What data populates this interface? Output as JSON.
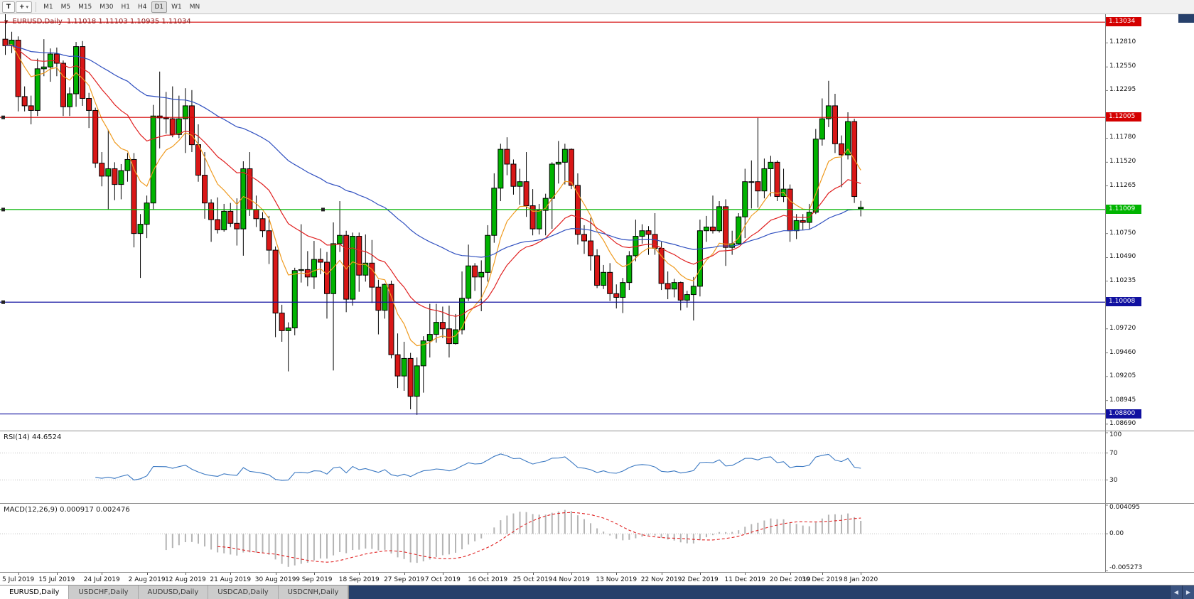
{
  "toolbar": {
    "tool_icons": [
      {
        "name": "text-tool",
        "glyph": "T"
      },
      {
        "name": "cursor-tool",
        "glyph": "+",
        "dropdown": "▾"
      }
    ],
    "timeframes": [
      "M1",
      "M5",
      "M15",
      "M30",
      "H1",
      "H4",
      "D1",
      "W1",
      "MN"
    ],
    "active": "D1"
  },
  "main_chart": {
    "marker": "▼",
    "symbol": "EURUSD,Daily",
    "ohlc": "1.11018 1.11103 1.10935 1.11034",
    "y_axis": {
      "max": 1.1312,
      "min": 1.0862
    },
    "scale_labels": [
      {
        "p": 1.1281,
        "t": "1.12810"
      },
      {
        "p": 1.1255,
        "t": "1.12550"
      },
      {
        "p": 1.12295,
        "t": "1.12295"
      },
      {
        "p": 1.1178,
        "t": "1.11780"
      },
      {
        "p": 1.1152,
        "t": "1.11520"
      },
      {
        "p": 1.11265,
        "t": "1.11265"
      },
      {
        "p": 1.1075,
        "t": "1.10750"
      },
      {
        "p": 1.1049,
        "t": "1.10490"
      },
      {
        "p": 1.10235,
        "t": "1.10235"
      },
      {
        "p": 1.0972,
        "t": "1.09720"
      },
      {
        "p": 1.0946,
        "t": "1.09460"
      },
      {
        "p": 1.09205,
        "t": "1.09205"
      },
      {
        "p": 1.08945,
        "t": "1.08945"
      },
      {
        "p": 1.0869,
        "t": "1.08690"
      }
    ],
    "hlines": [
      {
        "price": 1.13034,
        "label": "1.13034",
        "color": "#d40000",
        "handles": []
      },
      {
        "price": 1.12005,
        "label": "1.12005",
        "color": "#d40000",
        "handles": [
          2
        ]
      },
      {
        "price": 1.11009,
        "label": "1.11009",
        "color": "#00b400",
        "handles": [
          2,
          452
        ]
      },
      {
        "price": 1.10008,
        "label": "1.10008",
        "color": "#1010a0",
        "handles": [
          2
        ]
      },
      {
        "price": 1.088,
        "label": "1.08800",
        "color": "#1010a0",
        "handles": []
      }
    ]
  },
  "chart_data": {
    "type": "candlestick",
    "symbol": "EURUSD",
    "timeframe": "Daily",
    "candles": [
      [
        1.1285,
        1.1312,
        1.1268,
        1.1278
      ],
      [
        1.1278,
        1.1293,
        1.127,
        1.1284
      ],
      [
        1.1284,
        1.1288,
        1.1207,
        1.1223
      ],
      [
        1.1223,
        1.1234,
        1.1207,
        1.1213
      ],
      [
        1.1213,
        1.1224,
        1.1193,
        1.1208
      ],
      [
        1.1208,
        1.1264,
        1.1202,
        1.1253
      ],
      [
        1.1253,
        1.1285,
        1.1245,
        1.1255
      ],
      [
        1.1255,
        1.1275,
        1.1239,
        1.1269
      ],
      [
        1.1269,
        1.1276,
        1.1245,
        1.1259
      ],
      [
        1.1259,
        1.1262,
        1.1202,
        1.1212
      ],
      [
        1.1212,
        1.1233,
        1.1202,
        1.1226
      ],
      [
        1.1226,
        1.1282,
        1.1212,
        1.1277
      ],
      [
        1.1277,
        1.1283,
        1.1213,
        1.1221
      ],
      [
        1.1221,
        1.1227,
        1.1189,
        1.1208
      ],
      [
        1.1208,
        1.1211,
        1.1146,
        1.1151
      ],
      [
        1.1151,
        1.1163,
        1.1126,
        1.1137
      ],
      [
        1.1137,
        1.1187,
        1.1101,
        1.1145
      ],
      [
        1.1145,
        1.1152,
        1.1111,
        1.1128
      ],
      [
        1.1128,
        1.115,
        1.1112,
        1.1143
      ],
      [
        1.1143,
        1.1162,
        1.1131,
        1.1155
      ],
      [
        1.1155,
        1.1162,
        1.106,
        1.1075
      ],
      [
        1.1075,
        1.1096,
        1.1027,
        1.1085
      ],
      [
        1.1085,
        1.1116,
        1.107,
        1.1108
      ],
      [
        1.1108,
        1.1214,
        1.1101,
        1.1202
      ],
      [
        1.1202,
        1.125,
        1.1167,
        1.12
      ],
      [
        1.12,
        1.1228,
        1.1183,
        1.1199
      ],
      [
        1.1199,
        1.1234,
        1.1179,
        1.1182
      ],
      [
        1.1182,
        1.1224,
        1.1178,
        1.1199
      ],
      [
        1.1199,
        1.1232,
        1.1162,
        1.1213
      ],
      [
        1.1213,
        1.123,
        1.1163,
        1.1171
      ],
      [
        1.1171,
        1.1193,
        1.1131,
        1.1138
      ],
      [
        1.1138,
        1.1163,
        1.1091,
        1.1108
      ],
      [
        1.1108,
        1.1112,
        1.1066,
        1.109
      ],
      [
        1.109,
        1.1114,
        1.1075,
        1.1079
      ],
      [
        1.1079,
        1.1107,
        1.1077,
        1.1099
      ],
      [
        1.1099,
        1.1108,
        1.1082,
        1.1086
      ],
      [
        1.1086,
        1.1113,
        1.1062,
        1.108
      ],
      [
        1.108,
        1.1153,
        1.1051,
        1.1145
      ],
      [
        1.1145,
        1.1163,
        1.1094,
        1.1101
      ],
      [
        1.1101,
        1.1116,
        1.1082,
        1.1091
      ],
      [
        1.1091,
        1.1098,
        1.1071,
        1.1078
      ],
      [
        1.1078,
        1.1094,
        1.1042,
        1.1057
      ],
      [
        1.1057,
        1.1061,
        1.0963,
        1.0989
      ],
      [
        1.0989,
        1.0998,
        1.0958,
        1.097
      ],
      [
        1.097,
        1.0979,
        1.0926,
        1.0973
      ],
      [
        1.0973,
        1.1038,
        1.0965,
        1.1035
      ],
      [
        1.1035,
        1.1085,
        1.1022,
        1.1036
      ],
      [
        1.1036,
        1.1056,
        1.1018,
        1.1028
      ],
      [
        1.1028,
        1.1067,
        1.1015,
        1.1047
      ],
      [
        1.1047,
        1.1059,
        1.1031,
        1.1044
      ],
      [
        1.1044,
        1.1055,
        1.0983,
        1.101
      ],
      [
        1.101,
        1.1087,
        1.0927,
        1.1064
      ],
      [
        1.1064,
        1.111,
        1.1055,
        1.1073
      ],
      [
        1.1073,
        1.1078,
        1.099,
        1.1004
      ],
      [
        1.1004,
        1.1076,
        1.0997,
        1.1072
      ],
      [
        1.1072,
        1.1076,
        1.1012,
        1.103
      ],
      [
        1.103,
        1.1074,
        1.1023,
        1.1043
      ],
      [
        1.1043,
        1.1068,
        1.1,
        1.1017
      ],
      [
        1.1017,
        1.1025,
        1.0966,
        1.0992
      ],
      [
        1.0992,
        1.1021,
        1.0983,
        1.102
      ],
      [
        1.102,
        1.1024,
        1.094,
        1.0944
      ],
      [
        1.0944,
        1.0967,
        1.0908,
        1.0921
      ],
      [
        1.0921,
        1.0958,
        1.0905,
        1.094
      ],
      [
        1.094,
        1.0946,
        1.0885,
        1.0899
      ],
      [
        1.0899,
        1.0941,
        1.0879,
        1.0932
      ],
      [
        1.0932,
        1.0964,
        1.0903,
        1.0959
      ],
      [
        1.0959,
        1.0999,
        1.0941,
        1.0966
      ],
      [
        1.0966,
        1.0999,
        1.0957,
        1.0979
      ],
      [
        1.0979,
        1.0996,
        1.0962,
        1.0972
      ],
      [
        1.0972,
        1.0997,
        1.0941,
        1.0956
      ],
      [
        1.0956,
        1.0988,
        1.0955,
        1.0971
      ],
      [
        1.0971,
        1.1034,
        1.0966,
        1.1005
      ],
      [
        1.1005,
        1.1063,
        1.1002,
        1.104
      ],
      [
        1.104,
        1.1043,
        1.1013,
        1.1028
      ],
      [
        1.1028,
        1.1046,
        1.0991,
        1.1033
      ],
      [
        1.1033,
        1.1084,
        1.1023,
        1.1073
      ],
      [
        1.1073,
        1.114,
        1.1065,
        1.1124
      ],
      [
        1.1124,
        1.1172,
        1.111,
        1.1166
      ],
      [
        1.1166,
        1.1179,
        1.1138,
        1.115
      ],
      [
        1.115,
        1.1155,
        1.1117,
        1.1126
      ],
      [
        1.1126,
        1.1145,
        1.1106,
        1.1131
      ],
      [
        1.1131,
        1.1163,
        1.1093,
        1.1105
      ],
      [
        1.1105,
        1.1123,
        1.1073,
        1.108
      ],
      [
        1.108,
        1.1107,
        1.1074,
        1.11
      ],
      [
        1.11,
        1.1118,
        1.1073,
        1.1113
      ],
      [
        1.1113,
        1.1152,
        1.108,
        1.115
      ],
      [
        1.115,
        1.1175,
        1.1129,
        1.1152
      ],
      [
        1.1152,
        1.1172,
        1.1128,
        1.1166
      ],
      [
        1.1166,
        1.1167,
        1.1123,
        1.1127
      ],
      [
        1.1127,
        1.114,
        1.1063,
        1.1074
      ],
      [
        1.1074,
        1.1084,
        1.1053,
        1.1067
      ],
      [
        1.1067,
        1.1092,
        1.1035,
        1.1051
      ],
      [
        1.1051,
        1.1058,
        1.1016,
        1.1019
      ],
      [
        1.1019,
        1.1041,
        1.1015,
        1.1033
      ],
      [
        1.1033,
        1.1043,
        1.1002,
        1.101
      ],
      [
        1.101,
        1.102,
        1.0994,
        1.1006
      ],
      [
        1.1006,
        1.1027,
        1.0989,
        1.1022
      ],
      [
        1.1022,
        1.1056,
        1.1014,
        1.1051
      ],
      [
        1.1051,
        1.109,
        1.1045,
        1.1072
      ],
      [
        1.1072,
        1.1085,
        1.1064,
        1.1078
      ],
      [
        1.1078,
        1.1083,
        1.1052,
        1.1074
      ],
      [
        1.1074,
        1.1097,
        1.1052,
        1.1059
      ],
      [
        1.1059,
        1.1066,
        1.1014,
        1.1021
      ],
      [
        1.1021,
        1.1034,
        1.1004,
        1.1015
      ],
      [
        1.1015,
        1.1026,
        1.1006,
        1.1022
      ],
      [
        1.1022,
        1.1023,
        1.0992,
        1.1003
      ],
      [
        1.1003,
        1.1013,
        1.0995,
        1.1009
      ],
      [
        1.1009,
        1.1028,
        1.0981,
        1.1018
      ],
      [
        1.1018,
        1.109,
        1.1007,
        1.1078
      ],
      [
        1.1078,
        1.1094,
        1.1066,
        1.1082
      ],
      [
        1.1082,
        1.1116,
        1.1075,
        1.1078
      ],
      [
        1.1078,
        1.111,
        1.1076,
        1.1104
      ],
      [
        1.1104,
        1.1112,
        1.104,
        1.106
      ],
      [
        1.106,
        1.1078,
        1.1052,
        1.1064
      ],
      [
        1.1064,
        1.1097,
        1.1063,
        1.1093
      ],
      [
        1.1093,
        1.1145,
        1.107,
        1.1131
      ],
      [
        1.1131,
        1.1154,
        1.1102,
        1.1131
      ],
      [
        1.1131,
        1.12,
        1.1103,
        1.1121
      ],
      [
        1.1121,
        1.1156,
        1.1113,
        1.1145
      ],
      [
        1.1145,
        1.1159,
        1.1115,
        1.1152
      ],
      [
        1.1152,
        1.1154,
        1.111,
        1.1115
      ],
      [
        1.1115,
        1.1145,
        1.1109,
        1.1123
      ],
      [
        1.1123,
        1.1128,
        1.1066,
        1.1078
      ],
      [
        1.1078,
        1.1096,
        1.1069,
        1.1089
      ],
      [
        1.1089,
        1.1096,
        1.1079,
        1.1087
      ],
      [
        1.1087,
        1.1107,
        1.108,
        1.1098
      ],
      [
        1.1098,
        1.1188,
        1.1096,
        1.1177
      ],
      [
        1.1177,
        1.1221,
        1.117,
        1.1199
      ],
      [
        1.1199,
        1.124,
        1.119,
        1.1213
      ],
      [
        1.1213,
        1.1226,
        1.1162,
        1.1172
      ],
      [
        1.1172,
        1.1181,
        1.1125,
        1.116
      ],
      [
        1.116,
        1.1206,
        1.1155,
        1.1196
      ],
      [
        1.1196,
        1.1199,
        1.1108,
        1.1115
      ],
      [
        1.11018,
        1.11103,
        1.10935,
        1.11034
      ]
    ],
    "date_labels": [
      {
        "i": 2,
        "label": "5 Jul 2019"
      },
      {
        "i": 8,
        "label": "15 Jul 2019"
      },
      {
        "i": 15,
        "label": "24 Jul 2019"
      },
      {
        "i": 22,
        "label": "2 Aug 2019"
      },
      {
        "i": 28,
        "label": "12 Aug 2019"
      },
      {
        "i": 35,
        "label": "21 Aug 2019"
      },
      {
        "i": 42,
        "label": "30 Aug 2019"
      },
      {
        "i": 48,
        "label": "9 Sep 2019"
      },
      {
        "i": 55,
        "label": "18 Sep 2019"
      },
      {
        "i": 62,
        "label": "27 Sep 2019"
      },
      {
        "i": 68,
        "label": "7 Oct 2019"
      },
      {
        "i": 75,
        "label": "16 Oct 2019"
      },
      {
        "i": 82,
        "label": "25 Oct 2019"
      },
      {
        "i": 88,
        "label": "4 Nov 2019"
      },
      {
        "i": 95,
        "label": "13 Nov 2019"
      },
      {
        "i": 102,
        "label": "22 Nov 2019"
      },
      {
        "i": 108,
        "label": "2 Dec 2019"
      },
      {
        "i": 115,
        "label": "11 Dec 2019"
      },
      {
        "i": 122,
        "label": "20 Dec 2019"
      },
      {
        "i": 127,
        "label": "30 Dec 2019"
      },
      {
        "i": 133,
        "label": "8 Jan 2020"
      }
    ],
    "moving_averages": [
      {
        "period": 8,
        "method": "ema",
        "color": "#ef9b20"
      },
      {
        "period": 21,
        "method": "ema",
        "color": "#e02020"
      },
      {
        "period": 55,
        "method": "ema",
        "color": "#3050c0"
      }
    ]
  },
  "rsi": {
    "label": "RSI(14) 44.6524",
    "period": 14,
    "color": "#3a78c2",
    "levels": [
      {
        "v": 100,
        "t": "100"
      },
      {
        "v": 70,
        "t": "70"
      },
      {
        "v": 30,
        "t": "30"
      }
    ]
  },
  "macd": {
    "label": "MACD(12,26,9) 0.000917 0.002476",
    "fast": 12,
    "slow": 26,
    "signal": 9,
    "hist_color": "#b4b4b4",
    "signal_color": "#e02020",
    "scale": {
      "max": 0.004095,
      "max_label": "0.004095",
      "zero_label": "0.00",
      "min": -0.005273,
      "min_label": "-0.005273"
    }
  },
  "tabs": {
    "items": [
      {
        "label": "EURUSD,Daily",
        "active": true
      },
      {
        "label": "USDCHF,Daily",
        "active": false
      },
      {
        "label": "AUDUSD,Daily",
        "active": false
      },
      {
        "label": "USDCAD,Daily",
        "active": false
      },
      {
        "label": "USDCNH,Daily",
        "active": false
      }
    ],
    "scroll_left": "◀",
    "scroll_right": "▶"
  },
  "colors": {
    "bull": "#00b300",
    "bear": "#d91717",
    "outline": "#000000",
    "axis_line": "#808080",
    "grid_dotted": "#c0c0c0",
    "navy_ui": "#27406b"
  }
}
